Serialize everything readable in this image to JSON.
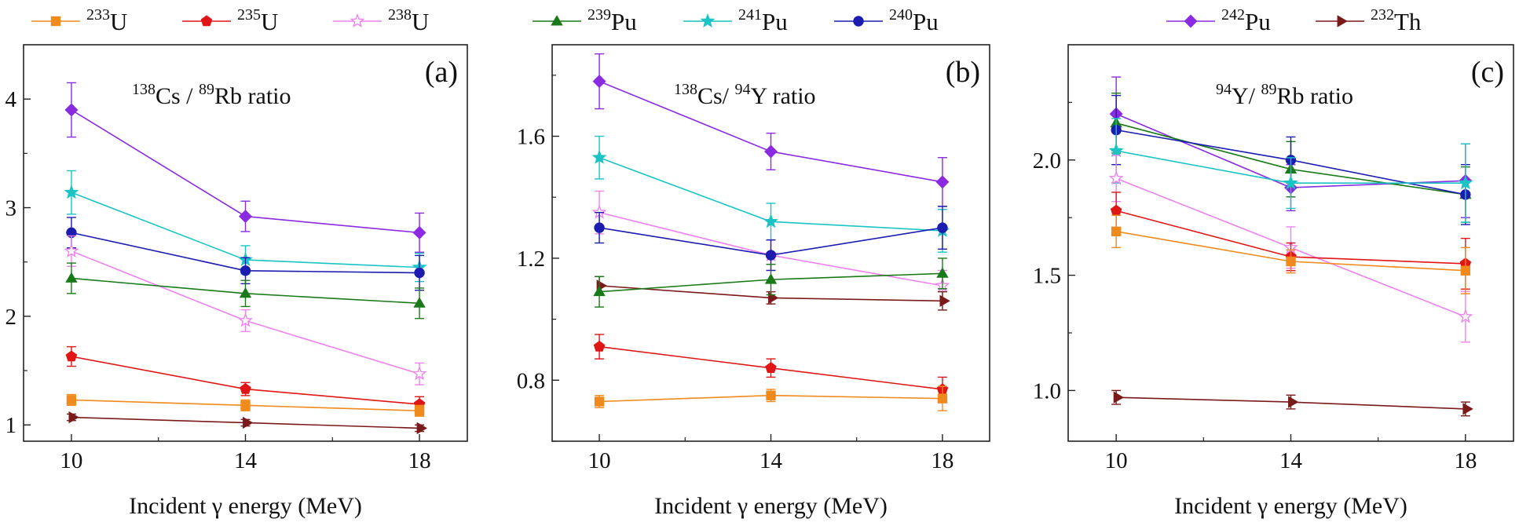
{
  "legend": {
    "items": [
      {
        "key": "u233",
        "iso": "233",
        "el": "U",
        "color": "#f08a1c",
        "marker": "square",
        "filled": true
      },
      {
        "key": "u235",
        "iso": "235",
        "el": "U",
        "color": "#e01515",
        "marker": "pentagon",
        "filled": true
      },
      {
        "key": "u238",
        "iso": "238",
        "el": "U",
        "color": "#ee82ee",
        "marker": "star",
        "filled": false
      },
      {
        "key": "pu239",
        "iso": "239",
        "el": "Pu",
        "color": "#1a7a1a",
        "marker": "triangle",
        "filled": true
      },
      {
        "key": "pu241",
        "iso": "241",
        "el": "Pu",
        "color": "#1ac4c4",
        "marker": "star",
        "filled": true
      },
      {
        "key": "pu240",
        "iso": "240",
        "el": "Pu",
        "color": "#1c1cb0",
        "marker": "circle",
        "filled": true
      },
      {
        "key": "pu242",
        "iso": "242",
        "el": "Pu",
        "color": "#8a2be2",
        "marker": "diamond",
        "filled": true
      },
      {
        "key": "th232",
        "iso": "232",
        "el": "Th",
        "color": "#7a1a1a",
        "marker": "triangle-right",
        "filled": true
      }
    ]
  },
  "chart_data": [
    {
      "type": "line",
      "panel_label": "(a)",
      "title_parts": {
        "num_iso": "138",
        "num_el": "Cs",
        "sep": " / ",
        "den_iso": "89",
        "den_el": "Rb",
        "suffix": " ratio"
      },
      "xlabel": "Incident γ energy (MeV)",
      "ylabel": "",
      "x": [
        10,
        14,
        18
      ],
      "xlim": [
        8.9,
        19.1
      ],
      "ylim": [
        0.85,
        4.5
      ],
      "yticks": [
        1,
        2,
        3,
        4
      ],
      "ytick_labels": [
        "1",
        "2",
        "3",
        "4"
      ],
      "xticks": [
        10,
        14,
        18
      ],
      "xtick_labels": [
        "10",
        "14",
        "18"
      ],
      "series": [
        {
          "key": "pu242",
          "values": [
            3.9,
            2.92,
            2.77
          ],
          "err": [
            0.25,
            0.14,
            0.18
          ]
        },
        {
          "key": "pu241",
          "values": [
            3.14,
            2.52,
            2.45
          ],
          "err": [
            0.2,
            0.13,
            0.13
          ]
        },
        {
          "key": "pu240",
          "values": [
            2.77,
            2.42,
            2.4
          ],
          "err": [
            0.14,
            0.12,
            0.16
          ]
        },
        {
          "key": "u238",
          "values": [
            2.6,
            1.96,
            1.47
          ],
          "err": [
            0.14,
            0.1,
            0.1
          ]
        },
        {
          "key": "pu239",
          "values": [
            2.35,
            2.21,
            2.12
          ],
          "err": [
            0.14,
            0.12,
            0.14
          ]
        },
        {
          "key": "u235",
          "values": [
            1.63,
            1.33,
            1.19
          ],
          "err": [
            0.09,
            0.06,
            0.07
          ]
        },
        {
          "key": "u233",
          "values": [
            1.23,
            1.18,
            1.13
          ],
          "err": [
            0.05,
            0.05,
            0.05
          ]
        },
        {
          "key": "th232",
          "values": [
            1.07,
            1.02,
            0.97
          ],
          "err": [
            0.03,
            0.03,
            0.03
          ]
        }
      ]
    },
    {
      "type": "line",
      "panel_label": "(b)",
      "title_parts": {
        "num_iso": "138",
        "num_el": "Cs",
        "sep": "/ ",
        "den_iso": "94",
        "den_el": "Y",
        "suffix": " ratio"
      },
      "xlabel": "Incident γ energy (MeV)",
      "ylabel": "",
      "x": [
        10,
        14,
        18
      ],
      "xlim": [
        8.9,
        19.1
      ],
      "ylim": [
        0.6,
        1.9
      ],
      "yticks": [
        0.8,
        1.2,
        1.6
      ],
      "ytick_labels": [
        "0.8",
        "1.2",
        "1.6"
      ],
      "xticks": [
        10,
        14,
        18
      ],
      "xtick_labels": [
        "10",
        "14",
        "18"
      ],
      "series": [
        {
          "key": "pu242",
          "values": [
            1.78,
            1.55,
            1.45
          ],
          "err": [
            0.09,
            0.06,
            0.08
          ]
        },
        {
          "key": "pu241",
          "values": [
            1.53,
            1.32,
            1.29
          ],
          "err": [
            0.07,
            0.06,
            0.07
          ]
        },
        {
          "key": "u238",
          "values": [
            1.35,
            1.21,
            1.11
          ],
          "err": [
            0.07,
            0.05,
            0.05
          ]
        },
        {
          "key": "pu240",
          "values": [
            1.3,
            1.21,
            1.3
          ],
          "err": [
            0.05,
            0.05,
            0.07
          ]
        },
        {
          "key": "th232",
          "values": [
            1.11,
            1.07,
            1.06
          ],
          "err": [
            0.03,
            0.02,
            0.03
          ]
        },
        {
          "key": "pu239",
          "values": [
            1.09,
            1.13,
            1.15
          ],
          "err": [
            0.05,
            0.05,
            0.05
          ]
        },
        {
          "key": "u235",
          "values": [
            0.91,
            0.84,
            0.77
          ],
          "err": [
            0.04,
            0.03,
            0.04
          ]
        },
        {
          "key": "u233",
          "values": [
            0.73,
            0.75,
            0.74
          ],
          "err": [
            0.02,
            0.02,
            0.04
          ]
        }
      ]
    },
    {
      "type": "line",
      "panel_label": "(c)",
      "title_parts": {
        "num_iso": "94",
        "num_el": "Y",
        "sep": "/ ",
        "den_iso": "89",
        "den_el": "Rb",
        "suffix": " ratio"
      },
      "xlabel": "Incident γ energy (MeV)",
      "ylabel": "",
      "x": [
        10,
        14,
        18
      ],
      "xlim": [
        8.9,
        19.1
      ],
      "ylim": [
        0.78,
        2.5
      ],
      "yticks": [
        1.0,
        1.5,
        2.0
      ],
      "ytick_labels": [
        "1.0",
        "1.5",
        "2.0"
      ],
      "xticks": [
        10,
        14,
        18
      ],
      "xtick_labels": [
        "10",
        "14",
        "18"
      ],
      "series": [
        {
          "key": "pu242",
          "values": [
            2.2,
            1.88,
            1.91
          ],
          "err": [
            0.16,
            0.1,
            0.16
          ]
        },
        {
          "key": "pu239",
          "values": [
            2.16,
            1.96,
            1.85
          ],
          "err": [
            0.13,
            0.12,
            0.12
          ]
        },
        {
          "key": "pu240",
          "values": [
            2.13,
            2.0,
            1.85
          ],
          "err": [
            0.15,
            0.1,
            0.13
          ]
        },
        {
          "key": "pu241",
          "values": [
            2.04,
            1.9,
            1.9
          ],
          "err": [
            0.14,
            0.11,
            0.17
          ]
        },
        {
          "key": "u238",
          "values": [
            1.92,
            1.62,
            1.32
          ],
          "err": [
            0.1,
            0.09,
            0.11
          ]
        },
        {
          "key": "u235",
          "values": [
            1.78,
            1.58,
            1.55
          ],
          "err": [
            0.08,
            0.06,
            0.11
          ]
        },
        {
          "key": "u233",
          "values": [
            1.69,
            1.56,
            1.52
          ],
          "err": [
            0.07,
            0.05,
            0.1
          ]
        },
        {
          "key": "th232",
          "values": [
            0.97,
            0.95,
            0.92
          ],
          "err": [
            0.03,
            0.03,
            0.03
          ]
        }
      ]
    }
  ]
}
